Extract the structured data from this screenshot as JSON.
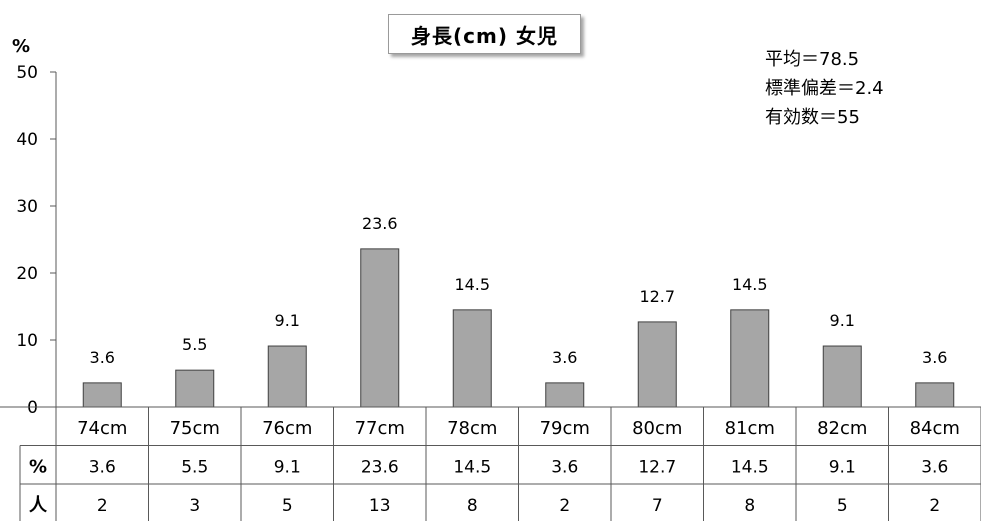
{
  "chart_data": {
    "type": "bar",
    "title": "身長(cm) 女児",
    "ylabel": "%",
    "ylim": [
      0,
      50
    ],
    "yticks": [
      0,
      10,
      20,
      30,
      40,
      50
    ],
    "categories": [
      "74cm",
      "75cm",
      "76cm",
      "77cm",
      "78cm",
      "79cm",
      "80cm",
      "81cm",
      "82cm",
      "84cm"
    ],
    "values": [
      3.6,
      5.5,
      9.1,
      23.6,
      14.5,
      3.6,
      12.7,
      14.5,
      9.1,
      3.6
    ],
    "data_labels": [
      "3.6",
      "5.5",
      "9.1",
      "23.6",
      "14.5",
      "3.6",
      "12.7",
      "14.5",
      "9.1",
      "3.6"
    ],
    "grid": false,
    "bar_color": "#a6a6a6",
    "bar_edge_color": "#404040",
    "table": {
      "rows": [
        {
          "label": "%",
          "values": [
            "3.6",
            "5.5",
            "9.1",
            "23.6",
            "14.5",
            "3.6",
            "12.7",
            "14.5",
            "9.1",
            "3.6"
          ]
        },
        {
          "label": "人",
          "values": [
            "2",
            "3",
            "5",
            "13",
            "8",
            "2",
            "7",
            "8",
            "5",
            "2"
          ]
        }
      ]
    }
  },
  "stats": {
    "mean": "平均＝78.5",
    "sd": "標準偏差＝2.4",
    "n": "有効数＝55"
  }
}
